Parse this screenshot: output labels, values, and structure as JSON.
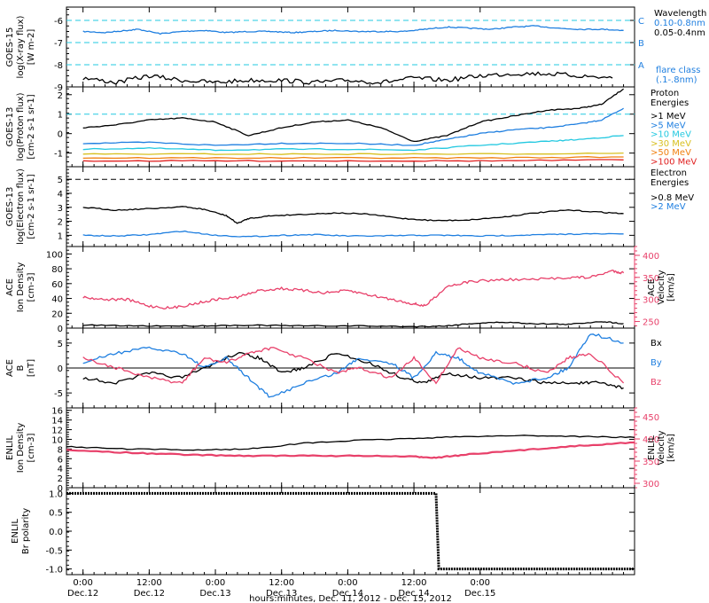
{
  "chart_data": {
    "type": "line",
    "title": "",
    "xlabel": "hours:minutes, Dec. 11, 2012 - Dec. 15, 2012",
    "x_ticks": [
      {
        "time": "0:00",
        "date": "Dec.12"
      },
      {
        "time": "12:00",
        "date": "Dec.12"
      },
      {
        "time": "0:00",
        "date": "Dec.13"
      },
      {
        "time": "12:00",
        "date": "Dec.13"
      },
      {
        "time": "0:00",
        "date": "Dec.14"
      },
      {
        "time": "12:00",
        "date": "Dec.14"
      },
      {
        "time": "0:00",
        "date": "Dec.15"
      }
    ],
    "panels": [
      {
        "id": "xray",
        "ylabel": [
          "GOES-15",
          "log(X-ray flux)",
          "[W m-2]"
        ],
        "ylim": [
          -9,
          -5.4
        ],
        "yticks": [
          -9,
          -8,
          -7,
          -6
        ],
        "dashed_lines": [
          {
            "value": -6,
            "label": "C"
          },
          {
            "value": -7,
            "label": "B"
          },
          {
            "value": -8,
            "label": "A"
          }
        ],
        "right_labels": [
          {
            "text": "Wavelength",
            "color": "#000000"
          },
          {
            "text": "0.10-0.8nm",
            "color": "#1f7fe0"
          },
          {
            "text": "0.05-0.4nm",
            "color": "#000000"
          },
          {
            "text": "flare class",
            "color": "#1f7fe0"
          },
          {
            "text": "(.1-.8nm)",
            "color": "#1f7fe0"
          }
        ],
        "series": [
          {
            "name": "0.10-0.8nm",
            "color": "#1f7fe0",
            "x": [
              0,
              4,
              8,
              10,
              14,
              18,
              22,
              26,
              30,
              34,
              38,
              42,
              46,
              50,
              54,
              58,
              62,
              66,
              70,
              74,
              78,
              82,
              86,
              90,
              94,
              98
            ],
            "values": [
              -6.5,
              -6.55,
              -6.45,
              -6.4,
              -6.6,
              -6.5,
              -6.45,
              -6.55,
              -6.5,
              -6.5,
              -6.55,
              -6.5,
              -6.45,
              -6.5,
              -6.5,
              -6.5,
              -6.4,
              -6.3,
              -6.35,
              -6.4,
              -6.3,
              -6.25,
              -6.35,
              -6.4,
              -6.4,
              -6.45
            ]
          },
          {
            "name": "0.05-0.4nm",
            "color": "#000000",
            "x": [
              0,
              6,
              12,
              18,
              24,
              30,
              36,
              42,
              48,
              54,
              60,
              66,
              72,
              78,
              84,
              90,
              96
            ],
            "values": [
              -8.6,
              -8.8,
              -8.5,
              -8.7,
              -8.8,
              -8.7,
              -8.7,
              -8.8,
              -8.7,
              -8.8,
              -8.6,
              -8.7,
              -8.5,
              -8.4,
              -8.4,
              -8.5,
              -8.6
            ]
          }
        ]
      },
      {
        "id": "proton",
        "ylabel": [
          "GOES-13",
          "log(Proton flux)",
          "[cm-2 s-1 sr-1]"
        ],
        "ylim": [
          -1.7,
          2.4
        ],
        "yticks": [
          -1,
          0,
          1,
          2
        ],
        "dashed_lines": [
          {
            "value": 1,
            "label": ""
          }
        ],
        "right_labels": [
          {
            "text": "Proton",
            "color": "#000000"
          },
          {
            "text": "Energies",
            "color": "#000000"
          },
          {
            "text": ">1 MeV",
            "color": "#000000"
          },
          {
            "text": ">5 MeV",
            "color": "#1f7fe0"
          },
          {
            "text": ">10 MeV",
            "color": "#22c8e0"
          },
          {
            "text": ">30 MeV",
            "color": "#d8c020"
          },
          {
            "text": ">50 MeV",
            "color": "#f08010"
          },
          {
            "text": ">100 MeV",
            "color": "#e02020"
          }
        ],
        "series": [
          {
            "name": ">1 MeV",
            "color": "#000000",
            "x": [
              0,
              6,
              12,
              18,
              24,
              30,
              36,
              42,
              48,
              54,
              60,
              66,
              72,
              78,
              84,
              90,
              94,
              98
            ],
            "values": [
              0.3,
              0.45,
              0.7,
              0.8,
              0.6,
              -0.1,
              0.3,
              0.6,
              0.7,
              0.3,
              -0.4,
              -0.1,
              0.6,
              0.9,
              1.2,
              1.3,
              1.5,
              2.3
            ]
          },
          {
            "name": ">5 MeV",
            "color": "#1f7fe0",
            "x": [
              0,
              12,
              24,
              36,
              48,
              60,
              66,
              72,
              78,
              84,
              90,
              94,
              98
            ],
            "values": [
              -0.5,
              -0.45,
              -0.6,
              -0.5,
              -0.5,
              -0.6,
              -0.3,
              0.0,
              0.2,
              0.3,
              0.5,
              0.7,
              1.3
            ]
          },
          {
            "name": ">10 MeV",
            "color": "#22c8e0",
            "x": [
              0,
              12,
              24,
              36,
              48,
              60,
              72,
              84,
              90,
              98
            ],
            "values": [
              -0.8,
              -0.75,
              -0.85,
              -0.8,
              -0.8,
              -0.85,
              -0.6,
              -0.4,
              -0.3,
              -0.1
            ]
          },
          {
            "name": ">30 MeV",
            "color": "#d8c020",
            "x": [
              0,
              24,
              48,
              72,
              98
            ],
            "values": [
              -1.05,
              -1.05,
              -1.05,
              -1.05,
              -1.0
            ]
          },
          {
            "name": ">50 MeV",
            "color": "#f08010",
            "x": [
              0,
              24,
              48,
              72,
              98
            ],
            "values": [
              -1.25,
              -1.25,
              -1.25,
              -1.25,
              -1.2
            ]
          },
          {
            "name": ">100 MeV",
            "color": "#e02020",
            "x": [
              0,
              24,
              48,
              72,
              98
            ],
            "values": [
              -1.4,
              -1.4,
              -1.4,
              -1.4,
              -1.35
            ]
          }
        ]
      },
      {
        "id": "electron",
        "ylabel": [
          "GOES-13",
          "log(Electron flux)",
          "[cm-2 s-1 sr-1]"
        ],
        "ylim": [
          0.2,
          5.9
        ],
        "yticks": [
          1,
          2,
          3,
          4,
          5
        ],
        "dashed_lines": [
          {
            "value": 5,
            "label": ""
          }
        ],
        "right_labels": [
          {
            "text": "Electron",
            "color": "#000000"
          },
          {
            "text": "Energies",
            "color": "#000000"
          },
          {
            "text": ">0.8 MeV",
            "color": "#000000"
          },
          {
            "text": ">2 MeV",
            "color": "#1f7fe0"
          }
        ],
        "series": [
          {
            "name": ">0.8 MeV",
            "color": "#000000",
            "x": [
              0,
              6,
              12,
              18,
              22,
              26,
              28,
              30,
              34,
              40,
              46,
              52,
              58,
              64,
              70,
              76,
              82,
              88,
              94,
              98
            ],
            "values": [
              3.0,
              2.8,
              2.9,
              3.05,
              2.85,
              2.4,
              1.85,
              2.2,
              2.4,
              2.5,
              2.6,
              2.5,
              2.2,
              2.05,
              2.1,
              2.3,
              2.6,
              2.8,
              2.65,
              2.55
            ]
          },
          {
            "name": ">2 MeV",
            "color": "#1f7fe0",
            "x": [
              0,
              6,
              12,
              18,
              24,
              30,
              36,
              42,
              48,
              54,
              60,
              66,
              72,
              78,
              84,
              90,
              98
            ],
            "values": [
              1.0,
              0.95,
              1.05,
              1.3,
              1.0,
              0.9,
              1.0,
              1.05,
              0.95,
              0.95,
              1.0,
              1.0,
              0.95,
              1.0,
              1.05,
              1.1,
              1.1
            ]
          }
        ]
      },
      {
        "id": "ace_density",
        "ylabel": [
          "ACE",
          "Ion Density",
          "[cm-3]"
        ],
        "ylim": [
          0,
          110
        ],
        "yticks": [
          0,
          20,
          40,
          60,
          80,
          100
        ],
        "y2label": [
          "ACE",
          "Velocity",
          "[km/s]"
        ],
        "y2lim": [
          235,
          420
        ],
        "y2ticks": [
          250,
          300,
          350,
          400
        ],
        "dashed_lines": [],
        "right_labels": [],
        "series": [
          {
            "name": "Ion Density",
            "color": "#000000",
            "axis": "left",
            "x": [
              0,
              10,
              20,
              30,
              40,
              50,
              60,
              66,
              70,
              76,
              82,
              88,
              94,
              98
            ],
            "values": [
              4,
              3,
              3,
              4,
              3,
              3,
              2,
              3,
              6,
              8,
              6,
              5,
              9,
              6
            ]
          },
          {
            "name": "Velocity",
            "color": "#e8406a",
            "axis": "right",
            "x": [
              0,
              4,
              8,
              12,
              16,
              20,
              24,
              28,
              32,
              36,
              40,
              44,
              48,
              52,
              56,
              60,
              62,
              66,
              70,
              76,
              82,
              88,
              92,
              96,
              98
            ],
            "values": [
              305,
              300,
              300,
              285,
              280,
              290,
              300,
              305,
              320,
              325,
              320,
              315,
              320,
              310,
              300,
              290,
              285,
              330,
              340,
              345,
              345,
              350,
              350,
              365,
              360
            ]
          }
        ]
      },
      {
        "id": "ace_b",
        "ylabel": [
          "ACE",
          "B",
          "[nT]"
        ],
        "ylim": [
          -8,
          8
        ],
        "yticks": [
          -5,
          0,
          5
        ],
        "dashed_lines": [],
        "zero_line": true,
        "right_labels": [
          {
            "text": "Bx",
            "color": "#000000"
          },
          {
            "text": "By",
            "color": "#1f7fe0"
          },
          {
            "text": "Bz",
            "color": "#e8406a"
          }
        ],
        "series": [
          {
            "name": "Bx",
            "color": "#000000",
            "x": [
              0,
              6,
              12,
              18,
              24,
              28,
              32,
              36,
              40,
              46,
              52,
              58,
              62,
              66,
              72,
              78,
              84,
              90,
              94,
              98
            ],
            "values": [
              -2,
              -3,
              -1,
              -2,
              1,
              3,
              2,
              -1,
              0,
              3,
              1,
              -2,
              -3,
              -1,
              -2,
              -2,
              -3,
              -3,
              -3,
              -4
            ]
          },
          {
            "name": "By",
            "color": "#1f7fe0",
            "x": [
              0,
              6,
              12,
              18,
              22,
              26,
              30,
              34,
              40,
              46,
              50,
              56,
              60,
              64,
              68,
              72,
              78,
              84,
              88,
              92,
              98
            ],
            "values": [
              1,
              3,
              4,
              3,
              0,
              2,
              -2,
              -6,
              -3,
              -1,
              2,
              1,
              -2,
              3,
              2,
              -1,
              -3,
              -2,
              0,
              7,
              5
            ]
          },
          {
            "name": "Bz",
            "color": "#e8406a",
            "x": [
              0,
              6,
              12,
              18,
              22,
              26,
              30,
              34,
              40,
              46,
              50,
              56,
              60,
              64,
              68,
              72,
              78,
              84,
              88,
              92,
              98
            ],
            "values": [
              2,
              0,
              -2,
              -3,
              2,
              1,
              3,
              4,
              2,
              -1,
              0,
              -2,
              2,
              -3,
              4,
              2,
              1,
              -1,
              2,
              3,
              -3
            ]
          }
        ]
      },
      {
        "id": "enlil_density",
        "ylabel": [
          "ENLIL",
          "Ion Density",
          "[cm-3]"
        ],
        "ylim": [
          0,
          16.5
        ],
        "yticks": [
          0,
          2,
          4,
          6,
          8,
          10,
          12,
          14,
          16
        ],
        "y2label": [
          "ENLIL",
          "Velocity",
          "[km/s]"
        ],
        "y2lim": [
          290,
          470
        ],
        "y2ticks": [
          300,
          350,
          400,
          450
        ],
        "dashed_lines": [],
        "right_labels": [],
        "series": [
          {
            "name": "Ion Density",
            "color": "#000000",
            "axis": "left",
            "x": [
              -3,
              8,
              20,
              30,
              40,
              50,
              60,
              70,
              80,
              90,
              100
            ],
            "values": [
              8.5,
              8.0,
              7.8,
              8.0,
              9.2,
              9.8,
              10.2,
              10.6,
              10.8,
              10.6,
              10.4
            ]
          },
          {
            "name": "Velocity",
            "color": "#e8406a",
            "axis": "right",
            "x": [
              -3,
              10,
              20,
              30,
              40,
              50,
              60,
              64,
              70,
              80,
              90,
              100
            ],
            "values": [
              375,
              368,
              364,
              362,
              362,
              362,
              360,
              358,
              365,
              375,
              385,
              392
            ]
          }
        ]
      },
      {
        "id": "enlil_polarity",
        "ylabel": [
          "ENLIL",
          "Br polarity"
        ],
        "ylim": [
          -1.15,
          1.15
        ],
        "yticks": [
          -1.0,
          -0.5,
          0.0,
          0.5,
          1.0
        ],
        "ytick_labels": [
          "-1.0",
          "-0.5",
          "0.0",
          "0.5",
          "1.0"
        ],
        "dashed_lines": [],
        "right_labels": [],
        "series": [
          {
            "name": "Br polarity",
            "color": "#000000",
            "x": [
              -3,
              64,
              64.5,
              100
            ],
            "values": [
              1.0,
              1.0,
              -1.0,
              -1.0
            ],
            "step": true
          }
        ]
      }
    ]
  }
}
